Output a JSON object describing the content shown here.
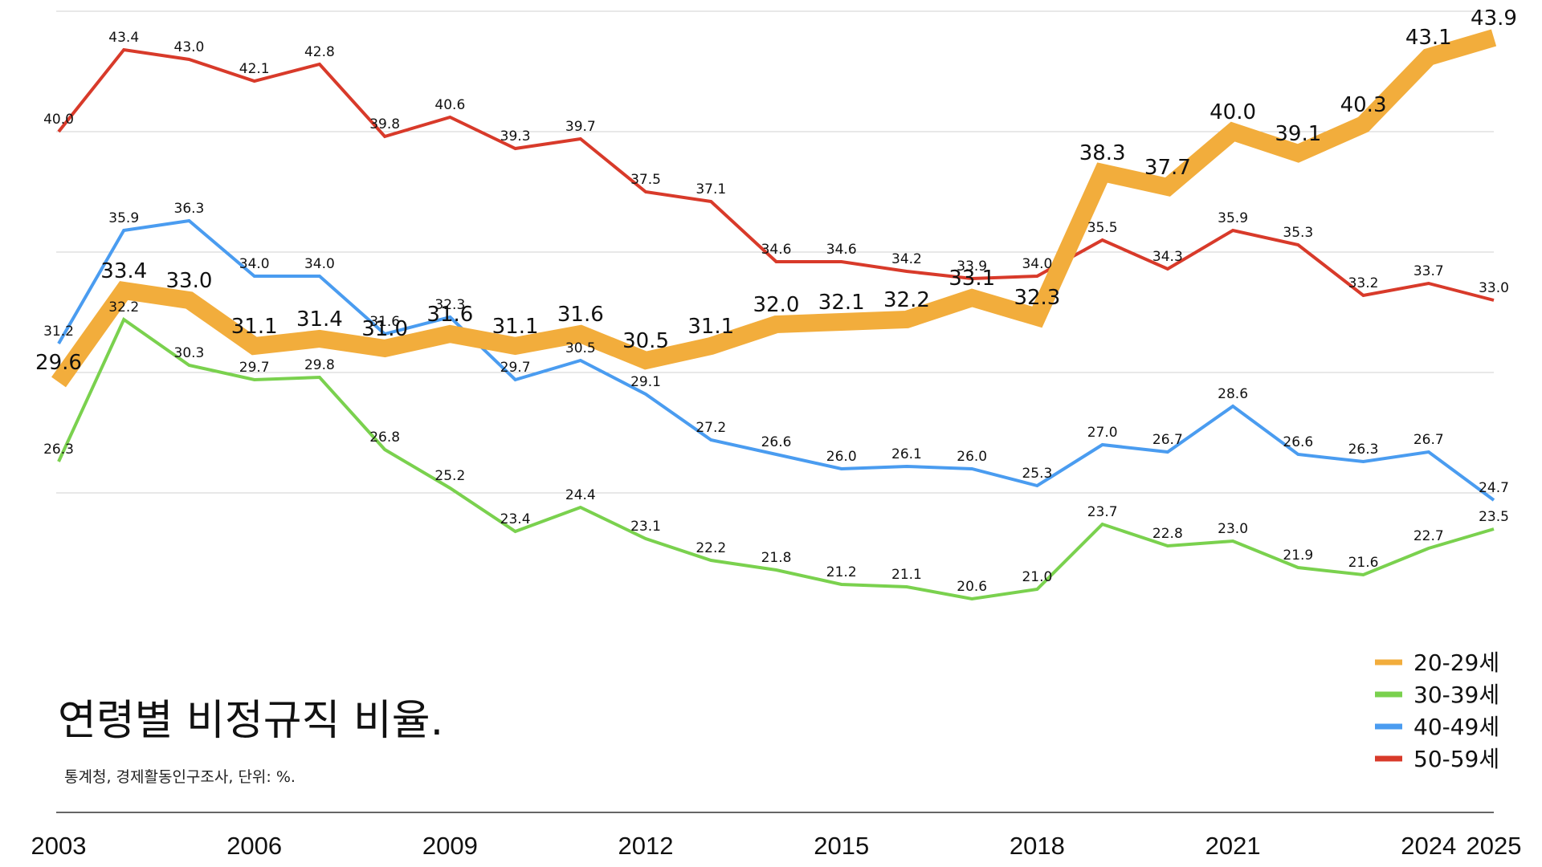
{
  "chart_data": {
    "type": "line",
    "title": "연령별 비정규직 비율.",
    "subtitle": "통계청, 경제활동인구조사, 단위: %.",
    "x": [
      2003,
      2004,
      2005,
      2006,
      2007,
      2008,
      2009,
      2010,
      2011,
      2012,
      2013,
      2014,
      2015,
      2016,
      2017,
      2018,
      2019,
      2020,
      2021,
      2022,
      2023,
      2024,
      2025
    ],
    "x_tick_labels": [
      "2003",
      "2006",
      "2009",
      "2012",
      "2015",
      "2018",
      "2021",
      "2024",
      "2025"
    ],
    "ylim": [
      20,
      45
    ],
    "grid": true,
    "legend_position": "bottom-right",
    "series": [
      {
        "name": "50-59세",
        "color": "#d83a2a",
        "emphasis": false,
        "values": [
          40.0,
          43.4,
          43.0,
          42.1,
          42.8,
          39.8,
          40.6,
          39.3,
          39.7,
          37.5,
          37.1,
          34.6,
          34.6,
          34.2,
          33.9,
          34.0,
          35.5,
          34.3,
          35.9,
          35.3,
          33.2,
          33.7,
          33.0
        ]
      },
      {
        "name": "40-49세",
        "color": "#4a9cf0",
        "emphasis": false,
        "values": [
          31.2,
          35.9,
          36.3,
          34.0,
          34.0,
          31.6,
          32.3,
          29.7,
          30.5,
          29.1,
          27.2,
          26.6,
          26.0,
          26.1,
          26.0,
          25.3,
          27.0,
          26.7,
          28.6,
          26.6,
          26.3,
          26.7,
          24.7
        ]
      },
      {
        "name": "30-39세",
        "color": "#7ad14e",
        "emphasis": false,
        "values": [
          26.3,
          32.2,
          30.3,
          29.7,
          29.8,
          26.8,
          25.2,
          23.4,
          24.4,
          23.1,
          22.2,
          21.8,
          21.2,
          21.1,
          20.6,
          21.0,
          23.7,
          22.8,
          23.0,
          21.9,
          21.6,
          22.7,
          23.5
        ]
      },
      {
        "name": "20-29세",
        "color": "#f2ad3c",
        "emphasis": true,
        "values": [
          29.6,
          33.4,
          33.0,
          31.1,
          31.4,
          31.0,
          31.6,
          31.1,
          31.6,
          30.5,
          31.1,
          32.0,
          32.1,
          32.2,
          33.1,
          32.3,
          38.3,
          37.7,
          40.0,
          39.1,
          40.3,
          43.1,
          43.9
        ]
      }
    ],
    "legend": [
      "20-29세",
      "30-39세",
      "40-49세",
      "50-59세"
    ]
  }
}
